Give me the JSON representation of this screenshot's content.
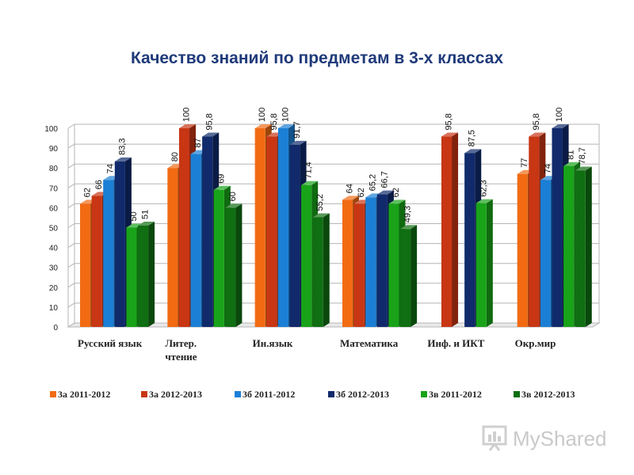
{
  "chart_data": {
    "type": "bar",
    "title": "Качество знаний по предметам в 3-х классах",
    "categories": [
      [
        "Русский язык"
      ],
      [
        "Литер.",
        "чтение"
      ],
      [
        "Ин.язык"
      ],
      [
        "Математика"
      ],
      [
        "Инф. и ИКТ"
      ],
      [
        "Окр.мир"
      ]
    ],
    "series": [
      {
        "name": "3а 2011-2012",
        "color": "#f26b13",
        "values": [
          62,
          80,
          100,
          64,
          null,
          77
        ],
        "labels": [
          "62",
          "80",
          "100",
          "64",
          "",
          "77"
        ]
      },
      {
        "name": "3а 2012-2013",
        "color": "#c83614",
        "values": [
          66,
          100,
          95.8,
          62,
          95.8,
          95.8
        ],
        "labels": [
          "66",
          "100",
          "95,8",
          "62",
          "95,8",
          "95,8"
        ]
      },
      {
        "name": "3б 2011-2012",
        "color": "#1b7fd6",
        "values": [
          74,
          87,
          100,
          65.2,
          null,
          74
        ],
        "labels": [
          "74",
          "87",
          "100",
          "65,2",
          "",
          "74"
        ]
      },
      {
        "name": "3б 2012-2013",
        "color": "#102a6b",
        "values": [
          83.3,
          95.8,
          91.7,
          66.7,
          87.5,
          100
        ],
        "labels": [
          "83,3",
          "95,8",
          "91,7",
          "66,7",
          "87,5",
          "100"
        ]
      },
      {
        "name": "3в 2011-2012",
        "color": "#19a319",
        "values": [
          50,
          69,
          71.4,
          62,
          62.3,
          81
        ],
        "labels": [
          "50",
          "69",
          "71,4",
          "62",
          "62,3",
          "81"
        ]
      },
      {
        "name": "3в 2012-2013",
        "color": "#0f6f12",
        "values": [
          51,
          60,
          55.2,
          49.3,
          null,
          78.7
        ],
        "labels": [
          "51",
          "60",
          "55,2",
          "49,3",
          "",
          "78,7"
        ]
      }
    ],
    "yticks": [
      "0",
      "10",
      "20",
      "30",
      "40",
      "50",
      "60",
      "70",
      "80",
      "90",
      "100"
    ],
    "ylim": [
      0,
      100
    ],
    "grid": true,
    "legend_position": "bottom"
  },
  "watermark": {
    "text": "MyShared",
    "icon": "projector-screen-icon"
  }
}
